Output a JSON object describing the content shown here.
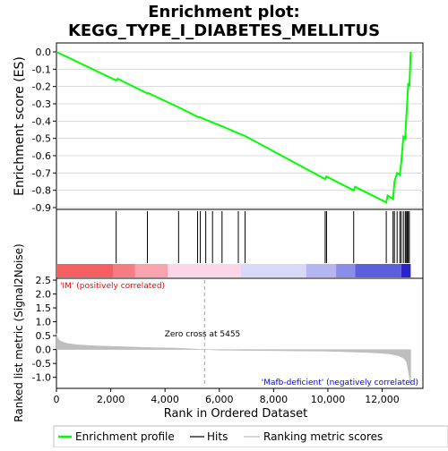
{
  "chart_data": {
    "type": "line",
    "title_lines": [
      "Enrichment plot:",
      "KEGG_TYPE_I_DIABETES_MELLITUS"
    ],
    "top_panel": {
      "ylabel": "Enrichment score (ES)",
      "ylim": [
        -0.9,
        0.0
      ],
      "yticks": [
        0.0,
        -0.1,
        -0.2,
        -0.3,
        -0.4,
        -0.5,
        -0.6,
        -0.7,
        -0.8,
        -0.9
      ],
      "ytick_labels": [
        "0.0",
        "-0.1",
        "-0.2",
        "-0.3",
        "-0.4",
        "-0.5",
        "-0.6",
        "-0.7",
        "-0.8",
        "-0.9"
      ],
      "series": [
        {
          "name": "Enrichment profile",
          "color": "#00ff00",
          "points": [
            [
              0,
              0.0
            ],
            [
              2200,
              -0.165
            ],
            [
              2250,
              -0.155
            ],
            [
              3350,
              -0.24
            ],
            [
              3380,
              -0.238
            ],
            [
              4500,
              -0.32
            ],
            [
              5200,
              -0.375
            ],
            [
              5300,
              -0.378
            ],
            [
              5500,
              -0.392
            ],
            [
              5750,
              -0.408
            ],
            [
              6100,
              -0.43
            ],
            [
              6700,
              -0.47
            ],
            [
              6950,
              -0.486
            ],
            [
              9900,
              -0.735
            ],
            [
              9950,
              -0.72
            ],
            [
              10950,
              -0.8
            ],
            [
              11000,
              -0.78
            ],
            [
              12150,
              -0.87
            ],
            [
              12200,
              -0.83
            ],
            [
              12400,
              -0.85
            ],
            [
              12450,
              -0.75
            ],
            [
              12550,
              -0.7
            ],
            [
              12650,
              -0.71
            ],
            [
              12700,
              -0.64
            ],
            [
              12780,
              -0.49
            ],
            [
              12850,
              -0.5
            ],
            [
              12880,
              -0.4
            ],
            [
              12920,
              -0.3
            ],
            [
              12960,
              -0.18
            ],
            [
              13000,
              -0.2
            ],
            [
              13050,
              0.0
            ]
          ]
        }
      ]
    },
    "hits": {
      "name": "Hits",
      "positions": [
        2200,
        3350,
        4500,
        5200,
        5300,
        5500,
        5750,
        6100,
        6700,
        6950,
        9900,
        9950,
        10950,
        12150,
        12400,
        12450,
        12550,
        12650,
        12700,
        12780,
        12850,
        12880,
        12920,
        12960,
        13000
      ]
    },
    "rank_colorbar": {
      "segments": [
        {
          "from": 0,
          "to": 2100,
          "color": "#f45f61"
        },
        {
          "from": 2100,
          "to": 2900,
          "color": "#f67b82"
        },
        {
          "from": 2900,
          "to": 4100,
          "color": "#f9a3ad"
        },
        {
          "from": 4100,
          "to": 6800,
          "color": "#fbd5e8"
        },
        {
          "from": 6800,
          "to": 9200,
          "color": "#d8d8f8"
        },
        {
          "from": 9200,
          "to": 10300,
          "color": "#b3b6f0"
        },
        {
          "from": 10300,
          "to": 11000,
          "color": "#8a8ee8"
        },
        {
          "from": 11000,
          "to": 12700,
          "color": "#5c5edc"
        },
        {
          "from": 12700,
          "to": 13050,
          "color": "#2b22c8"
        }
      ]
    },
    "bottom_panel": {
      "ylabel": "Ranked list metric (Signal2Noise)",
      "xlabel": "Rank in Ordered Dataset",
      "ylim": [
        -1.3,
        2.5
      ],
      "yticks": [
        2.5,
        2.0,
        1.5,
        1.0,
        0.5,
        0.0,
        -0.5,
        -1.0
      ],
      "ytick_labels": [
        "2.5",
        "2.0",
        "1.5",
        "1.0",
        "0.5",
        "0.0",
        "-0.5",
        "-1.0"
      ],
      "xlim": [
        0,
        13500
      ],
      "xticks": [
        0,
        2000,
        4000,
        6000,
        8000,
        10000,
        12000
      ],
      "xtick_labels": [
        "0",
        "2,000",
        "4,000",
        "6,000",
        "8,000",
        "10,000",
        "12,000"
      ],
      "metric_color": "#bebebe",
      "metric_profile": [
        [
          0,
          0.58
        ],
        [
          50,
          0.4
        ],
        [
          150,
          0.3
        ],
        [
          400,
          0.22
        ],
        [
          800,
          0.17
        ],
        [
          1500,
          0.13
        ],
        [
          2500,
          0.1
        ],
        [
          3500,
          0.07
        ],
        [
          4500,
          0.05
        ],
        [
          5455,
          0.0
        ],
        [
          6000,
          -0.02
        ],
        [
          7000,
          -0.03
        ],
        [
          8000,
          -0.04
        ],
        [
          9000,
          -0.05
        ],
        [
          10000,
          -0.06
        ],
        [
          11000,
          -0.09
        ],
        [
          11800,
          -0.12
        ],
        [
          12300,
          -0.16
        ],
        [
          12600,
          -0.22
        ],
        [
          12800,
          -0.32
        ],
        [
          12900,
          -0.45
        ],
        [
          12950,
          -0.7
        ],
        [
          13000,
          -1.0
        ],
        [
          13050,
          -1.3
        ]
      ],
      "zero_cross_rank": 5455,
      "zero_cross_label": "Zero cross at 5455",
      "pos_label": "'IM' (positively correlated)",
      "pos_color": "#ff0000",
      "neg_label": "'Mafb-deficient' (negatively correlated)",
      "neg_color": "#0000ff"
    },
    "legend": {
      "placement": "bottom",
      "entries": [
        {
          "label": "Enrichment profile",
          "color": "#00ff00"
        },
        {
          "label": "Hits",
          "color": "#000000"
        },
        {
          "label": "Ranking metric scores",
          "color": "#bebebe"
        }
      ]
    }
  }
}
